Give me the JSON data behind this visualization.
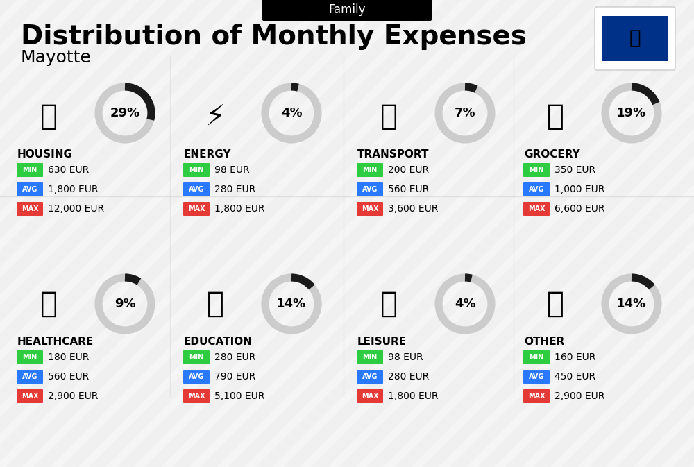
{
  "title": "Distribution of Monthly Expenses",
  "subtitle": "Mayotte",
  "category_label": "Family",
  "background_color": "#f0f0f0",
  "categories": [
    {
      "name": "HOUSING",
      "percent": 29,
      "min": "630 EUR",
      "avg": "1,800 EUR",
      "max": "12,000 EUR",
      "row": 0,
      "col": 0
    },
    {
      "name": "ENERGY",
      "percent": 4,
      "min": "98 EUR",
      "avg": "280 EUR",
      "max": "1,800 EUR",
      "row": 0,
      "col": 1
    },
    {
      "name": "TRANSPORT",
      "percent": 7,
      "min": "200 EUR",
      "avg": "560 EUR",
      "max": "3,600 EUR",
      "row": 0,
      "col": 2
    },
    {
      "name": "GROCERY",
      "percent": 19,
      "min": "350 EUR",
      "avg": "1,000 EUR",
      "max": "6,600 EUR",
      "row": 0,
      "col": 3
    },
    {
      "name": "HEALTHCARE",
      "percent": 9,
      "min": "180 EUR",
      "avg": "560 EUR",
      "max": "2,900 EUR",
      "row": 1,
      "col": 0
    },
    {
      "name": "EDUCATION",
      "percent": 14,
      "min": "280 EUR",
      "avg": "790 EUR",
      "max": "5,100 EUR",
      "row": 1,
      "col": 1
    },
    {
      "name": "LEISURE",
      "percent": 4,
      "min": "98 EUR",
      "avg": "280 EUR",
      "max": "1,800 EUR",
      "row": 1,
      "col": 2
    },
    {
      "name": "OTHER",
      "percent": 14,
      "min": "160 EUR",
      "avg": "450 EUR",
      "max": "2,900 EUR",
      "row": 1,
      "col": 3
    }
  ],
  "color_min": "#2ecc40",
  "color_avg": "#2979ff",
  "color_max": "#e53935",
  "color_donut_filled": "#1a1a1a",
  "color_donut_empty": "#cccccc",
  "title_fontsize": 28,
  "subtitle_fontsize": 18,
  "label_fontsize": 10,
  "value_fontsize": 10
}
